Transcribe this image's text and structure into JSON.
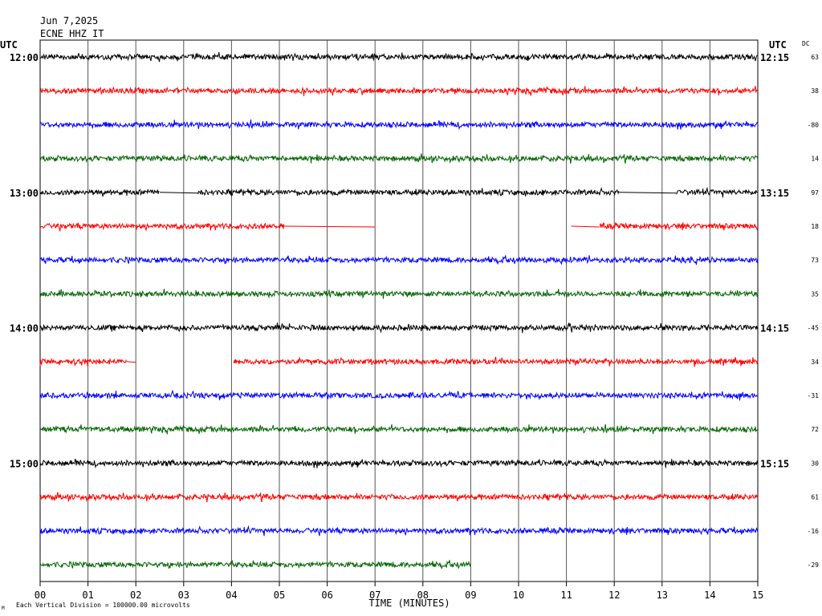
{
  "header": {
    "date": "Jun 7,2025",
    "station": "ECNE HHZ IT"
  },
  "labels": {
    "utc_left": "UTC",
    "utc_right": "UTC",
    "dc": "DC",
    "xlabel": "TIME (MINUTES)",
    "footer": "Each Vertical Division = 100000.00 microvolts",
    "corner_mark": "M"
  },
  "chart_data": {
    "type": "line",
    "title": "",
    "xlabel": "TIME (MINUTES)",
    "xlim": [
      0,
      15
    ],
    "x_ticks": [
      "00",
      "01",
      "02",
      "03",
      "04",
      "05",
      "06",
      "07",
      "08",
      "09",
      "10",
      "11",
      "12",
      "13",
      "14",
      "15"
    ],
    "left_time_labels": [
      "12:00",
      "13:00",
      "14:00",
      "15:00"
    ],
    "right_time_labels": [
      "12:15",
      "13:15",
      "14:15",
      "15:15"
    ],
    "trace_colors": [
      "#000000",
      "#ff0000",
      "#0000ff",
      "#006600"
    ],
    "traces": [
      {
        "dc": "63",
        "segments": [
          [
            0,
            15
          ]
        ],
        "flat": []
      },
      {
        "dc": "38",
        "segments": [
          [
            0,
            15
          ]
        ],
        "flat": []
      },
      {
        "dc": "-80",
        "segments": [
          [
            0,
            15
          ]
        ],
        "flat": []
      },
      {
        "dc": "14",
        "segments": [
          [
            0,
            15
          ]
        ],
        "flat": []
      },
      {
        "dc": "97",
        "segments": [
          [
            0,
            2.5
          ],
          [
            3.3,
            12.1
          ],
          [
            13.3,
            15
          ]
        ],
        "flat": [
          [
            2.5,
            3.3
          ],
          [
            12.1,
            13.3
          ]
        ]
      },
      {
        "dc": "18",
        "segments": [
          [
            0,
            5.1
          ],
          [
            11.7,
            15
          ]
        ],
        "flat": [
          [
            5.1,
            7.0
          ],
          [
            11.1,
            11.7
          ]
        ]
      },
      {
        "dc": "73",
        "segments": [
          [
            0,
            15
          ]
        ],
        "flat": []
      },
      {
        "dc": "35",
        "segments": [
          [
            0,
            15
          ]
        ],
        "flat": []
      },
      {
        "dc": "-45",
        "segments": [
          [
            0,
            15
          ]
        ],
        "flat": []
      },
      {
        "dc": "34",
        "segments": [
          [
            0,
            1.8
          ],
          [
            4.05,
            15
          ]
        ],
        "flat": [
          [
            1.8,
            2.0
          ]
        ]
      },
      {
        "dc": "-31",
        "segments": [
          [
            0,
            15
          ]
        ],
        "flat": []
      },
      {
        "dc": "72",
        "segments": [
          [
            0,
            15
          ]
        ],
        "flat": []
      },
      {
        "dc": "30",
        "segments": [
          [
            0,
            15
          ]
        ],
        "flat": []
      },
      {
        "dc": "61",
        "segments": [
          [
            0,
            15
          ]
        ],
        "flat": []
      },
      {
        "dc": "-16",
        "segments": [
          [
            0,
            15
          ]
        ],
        "flat": []
      },
      {
        "dc": "-29",
        "segments": [
          [
            0,
            9.0
          ]
        ],
        "flat": []
      }
    ]
  }
}
